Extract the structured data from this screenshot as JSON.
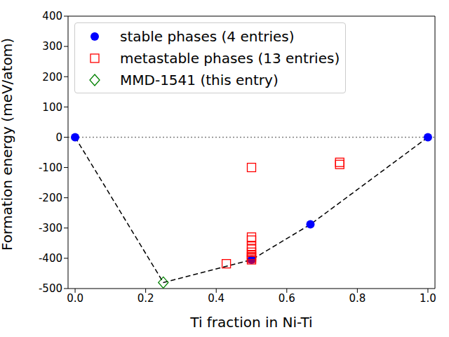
{
  "chart_data": {
    "type": "scatter",
    "xlabel": "Ti fraction in Ni-Ti",
    "ylabel": "Formation energy (meV/atom)",
    "xlim": [
      -0.02,
      1.02
    ],
    "ylim": [
      -500,
      400
    ],
    "xticks": [
      {
        "value": 0,
        "label": "0.0"
      },
      0.2,
      0.4,
      0.6,
      0.8,
      {
        "value": 1,
        "label": "1.0"
      }
    ],
    "yticks": [
      -500,
      -400,
      -300,
      -200,
      -100,
      0,
      100,
      200,
      300,
      400
    ],
    "legend": "upper left",
    "series": [
      {
        "type": "line",
        "line_style": "dotted",
        "color": "#808080",
        "x": [
          -0.02,
          1.02
        ],
        "values": [
          0,
          0
        ]
      },
      {
        "type": "line",
        "line_style": "dashed",
        "color": "#000000",
        "x": [
          0,
          0.25,
          0.5,
          0.667,
          1
        ],
        "values": [
          0,
          -480,
          -405,
          -288,
          0
        ]
      },
      {
        "type": "scatter",
        "name": "stable phases (4 entries)",
        "color": "#0000ff",
        "marker": "circle",
        "x": [
          0,
          0.5,
          0.667,
          1
        ],
        "values": [
          0,
          -405,
          -288,
          0
        ]
      },
      {
        "type": "scatter",
        "name": "metastable phases (13 entries)",
        "color": "#ff0000",
        "marker": "open_square",
        "x": [
          0.5,
          0.75,
          0.75,
          0.4286,
          0.5,
          0.5,
          0.5,
          0.5,
          0.5,
          0.5,
          0.5,
          0.5,
          0.5
        ],
        "values": [
          -100,
          -83,
          -90,
          -418,
          -330,
          -340,
          -360,
          -370,
          -380,
          -390,
          -395,
          -400,
          -405
        ]
      },
      {
        "type": "scatter",
        "name": "MMD-1541 (this entry)",
        "color": "#008000",
        "marker": "open_diamond",
        "x": [
          0.25
        ],
        "values": [
          -480
        ]
      }
    ]
  }
}
